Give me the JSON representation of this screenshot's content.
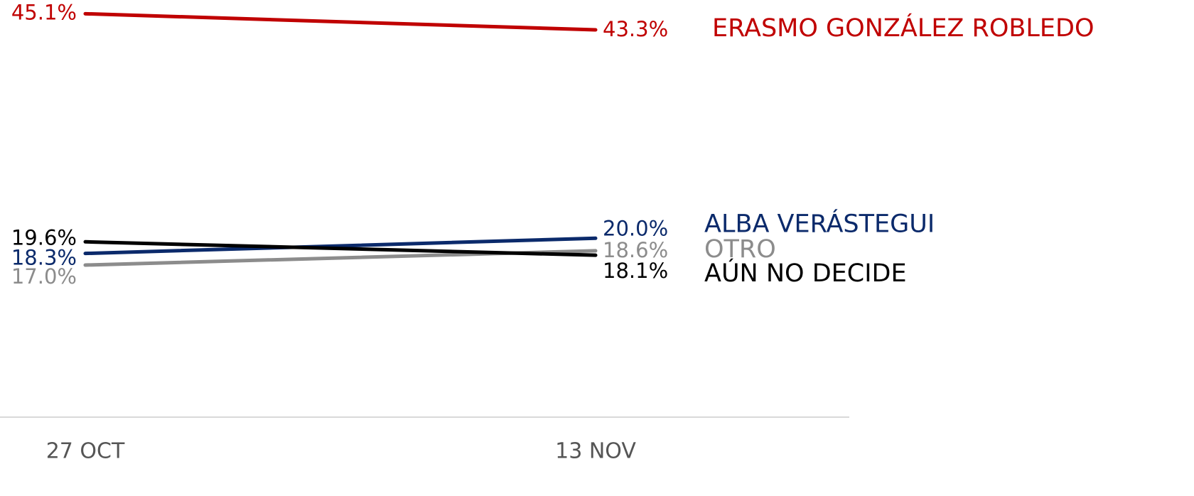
{
  "chart_data": {
    "type": "line",
    "categories": [
      "27 OCT",
      "13 NOV"
    ],
    "ylim": [
      0,
      46
    ],
    "series": [
      {
        "name": "ERASMO GONZÁLEZ ROBLEDO",
        "color": "#c00000",
        "values": [
          45.1,
          43.3
        ],
        "value_labels": [
          "45.1%",
          "43.3%"
        ]
      },
      {
        "name": "ALBA VERÁSTEGUI",
        "color": "#0b2a6b",
        "values": [
          18.3,
          20.0
        ],
        "value_labels": [
          "18.3%",
          "20.0%"
        ]
      },
      {
        "name": "OTRO",
        "color": "#8c8c8c",
        "values": [
          17.0,
          18.6
        ],
        "value_labels": [
          "17.0%",
          "18.6%"
        ]
      },
      {
        "name": "AÚN NO DECIDE",
        "color": "#000000",
        "values": [
          19.6,
          18.1
        ],
        "value_labels": [
          "19.6%",
          "18.1%"
        ]
      }
    ]
  }
}
